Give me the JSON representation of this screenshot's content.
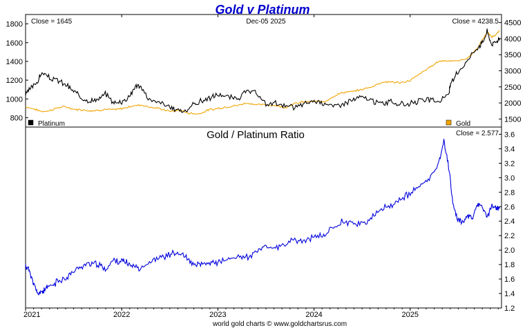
{
  "chart_data": {
    "title": "Gold v Platinum",
    "date": "Dec-05  2025",
    "footer": "world gold charts © www.goldchartsrus.com",
    "x_ticks": [
      "2021",
      "2022",
      "2023",
      "2024",
      "2025"
    ],
    "top_panel": {
      "type": "line",
      "left_axis": {
        "ylim": [
          700,
          1900
        ],
        "ticks": [
          "800",
          "1000",
          "1200",
          "1400",
          "1600",
          "1800"
        ]
      },
      "right_axis": {
        "ylim": [
          1250,
          4750
        ],
        "ticks": [
          "1500",
          "2000",
          "2500",
          "3000",
          "3500",
          "4000",
          "4500"
        ]
      },
      "close_left": "Close = 1645",
      "close_right": "Close = 4238.5",
      "series": [
        {
          "name": "Platinum",
          "axis": "left",
          "color": "#000000",
          "x": [
            2021.0,
            2021.06,
            2021.12,
            2021.17,
            2021.25,
            2021.33,
            2021.42,
            2021.5,
            2021.58,
            2021.67,
            2021.75,
            2021.83,
            2021.92,
            2022.0,
            2022.08,
            2022.15,
            2022.2,
            2022.3,
            2022.42,
            2022.5,
            2022.58,
            2022.67,
            2022.75,
            2022.83,
            2022.92,
            2023.0,
            2023.1,
            2023.2,
            2023.3,
            2023.4,
            2023.5,
            2023.6,
            2023.7,
            2023.8,
            2023.9,
            2024.0,
            2024.1,
            2024.2,
            2024.3,
            2024.4,
            2024.5,
            2024.6,
            2024.7,
            2024.8,
            2024.9,
            2025.0,
            2025.1,
            2025.2,
            2025.3,
            2025.4,
            2025.42,
            2025.5,
            2025.6,
            2025.7,
            2025.75,
            2025.8,
            2025.85,
            2025.9,
            2025.93
          ],
          "values": [
            1050,
            1120,
            1180,
            1280,
            1220,
            1200,
            1150,
            1080,
            1020,
            980,
            990,
            1050,
            960,
            970,
            1030,
            1150,
            1120,
            980,
            960,
            900,
            890,
            870,
            940,
            980,
            1010,
            1050,
            1020,
            1000,
            1080,
            1060,
            940,
            960,
            920,
            910,
            950,
            980,
            960,
            920,
            950,
            990,
            1020,
            980,
            950,
            970,
            940,
            950,
            980,
            990,
            970,
            1050,
            1150,
            1290,
            1420,
            1550,
            1600,
            1720,
            1580,
            1620,
            1645
          ]
        },
        {
          "name": "Gold",
          "axis": "right",
          "color": "#f0a400",
          "x": [
            2021.0,
            2021.08,
            2021.17,
            2021.25,
            2021.33,
            2021.42,
            2021.5,
            2021.58,
            2021.67,
            2021.75,
            2021.83,
            2021.92,
            2022.0,
            2022.1,
            2022.2,
            2022.3,
            2022.4,
            2022.5,
            2022.6,
            2022.7,
            2022.8,
            2022.9,
            2023.0,
            2023.1,
            2023.2,
            2023.3,
            2023.4,
            2023.5,
            2023.6,
            2023.7,
            2023.8,
            2023.9,
            2024.0,
            2024.1,
            2024.2,
            2024.3,
            2024.4,
            2024.5,
            2024.6,
            2024.7,
            2024.8,
            2024.9,
            2025.0,
            2025.1,
            2025.2,
            2025.3,
            2025.4,
            2025.5,
            2025.6,
            2025.7,
            2025.75,
            2025.8,
            2025.85,
            2025.9,
            2025.93
          ],
          "values": [
            1880,
            1820,
            1730,
            1760,
            1850,
            1880,
            1800,
            1790,
            1760,
            1770,
            1800,
            1790,
            1820,
            1900,
            1940,
            1870,
            1820,
            1740,
            1770,
            1680,
            1660,
            1780,
            1830,
            1880,
            1920,
            2000,
            1950,
            1940,
            1920,
            1860,
            1980,
            2040,
            2050,
            2030,
            2200,
            2330,
            2350,
            2420,
            2500,
            2640,
            2660,
            2620,
            2700,
            2900,
            3100,
            3300,
            3320,
            3300,
            3400,
            3700,
            3950,
            4200,
            4050,
            4150,
            4238.5
          ]
        }
      ],
      "legend": [
        {
          "label": "Platinum",
          "color": "#000000",
          "position": "bottom-left"
        },
        {
          "label": "Gold",
          "color": "#f0a400",
          "position": "bottom-right"
        }
      ]
    },
    "bottom_panel": {
      "type": "line",
      "title": "Gold  /  Platinum Ratio",
      "close": "Close = 2.577",
      "ylim": [
        1.2,
        3.7
      ],
      "ticks": [
        "1.2",
        "1.4",
        "1.6",
        "1.8",
        "2.0",
        "2.2",
        "2.4",
        "2.6",
        "2.8",
        "3.0",
        "3.2",
        "3.4",
        "3.6"
      ],
      "series": [
        {
          "name": "Gold / Platinum Ratio",
          "color": "#0000dd",
          "x": [
            2021.0,
            2021.04,
            2021.08,
            2021.12,
            2021.17,
            2021.2,
            2021.25,
            2021.33,
            2021.42,
            2021.5,
            2021.58,
            2021.67,
            2021.75,
            2021.83,
            2021.92,
            2022.0,
            2022.05,
            2022.12,
            2022.2,
            2022.3,
            2022.4,
            2022.5,
            2022.58,
            2022.67,
            2022.75,
            2022.83,
            2022.92,
            2023.0,
            2023.1,
            2023.2,
            2023.3,
            2023.4,
            2023.5,
            2023.6,
            2023.7,
            2023.8,
            2023.9,
            2024.0,
            2024.1,
            2024.2,
            2024.3,
            2024.4,
            2024.5,
            2024.6,
            2024.7,
            2024.8,
            2024.9,
            2025.0,
            2025.1,
            2025.2,
            2025.3,
            2025.35,
            2025.4,
            2025.45,
            2025.5,
            2025.55,
            2025.6,
            2025.65,
            2025.7,
            2025.75,
            2025.8,
            2025.85,
            2025.9,
            2025.93
          ],
          "values": [
            1.78,
            1.72,
            1.55,
            1.4,
            1.42,
            1.45,
            1.5,
            1.56,
            1.62,
            1.7,
            1.78,
            1.82,
            1.8,
            1.74,
            1.86,
            1.85,
            1.82,
            1.78,
            1.76,
            1.84,
            1.9,
            1.94,
            1.96,
            1.9,
            1.78,
            1.8,
            1.82,
            1.84,
            1.86,
            1.92,
            1.9,
            1.96,
            2.06,
            2.02,
            2.08,
            2.14,
            2.12,
            2.18,
            2.2,
            2.32,
            2.4,
            2.38,
            2.36,
            2.44,
            2.56,
            2.62,
            2.7,
            2.78,
            2.88,
            2.98,
            3.22,
            3.52,
            3.15,
            2.6,
            2.42,
            2.38,
            2.48,
            2.46,
            2.62,
            2.6,
            2.45,
            2.62,
            2.58,
            2.577
          ]
        }
      ]
    }
  }
}
